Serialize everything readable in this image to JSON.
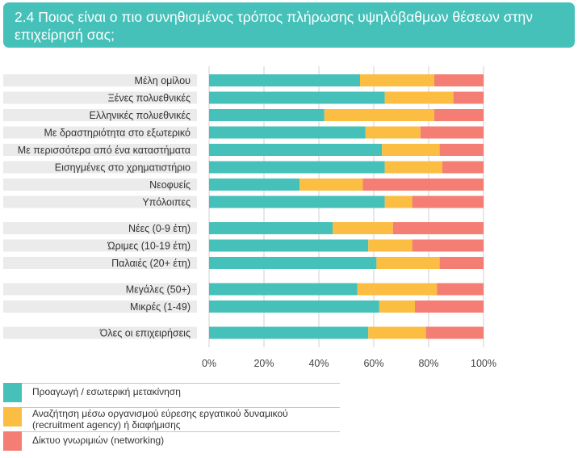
{
  "title": "2.4 Ποιος είναι ο πιο συνηθισμένος τρόπος πλήρωσης υψηλόβαθμων θέσεων στην επιχείρησή σας;",
  "chart_data": {
    "type": "bar",
    "orientation": "horizontal",
    "stacked": true,
    "percent": true,
    "categories": [
      "Μέλη ομίλου",
      "Ξένες πολυεθνικές",
      "Ελληνικές πολυεθνικές",
      "Με δραστηριότητα στο εξωτερικό",
      "Με περισσότερα από ένα καταστήματα",
      "Εισηγμένες στο χρηματιστήριο",
      "Νεοφυείς",
      "Υπόλοιπες",
      "Νέες (0-9 έτη)",
      "Ώριμες (10-19 έτη)",
      "Παλαιές (20+ έτη)",
      "Μεγάλες (50+)",
      "Μικρές (1-49)",
      "Όλες οι επιχειρήσεις"
    ],
    "groups": [
      8,
      3,
      2,
      1
    ],
    "series": [
      {
        "name": "Προαγωγή / εσωτερική μετακίνηση",
        "color": "#45c1b9",
        "values": [
          55,
          64,
          42,
          57,
          63,
          64,
          33,
          64,
          45,
          58,
          61,
          54,
          62,
          58
        ]
      },
      {
        "name": "Αναζήτηση μέσω οργανισμού εύρεσης εργατικού δυναμικού (recruitment agency) ή διαφήμισης",
        "color": "#fbbe42",
        "values": [
          27,
          25,
          40,
          20,
          21,
          21,
          23,
          10,
          22,
          16,
          23,
          29,
          13,
          21
        ]
      },
      {
        "name": "Δίκτυο γνωριμιών (networking)",
        "color": "#f47e74",
        "values": [
          18,
          11,
          18,
          23,
          16,
          15,
          44,
          26,
          33,
          26,
          16,
          17,
          25,
          21
        ]
      }
    ],
    "xlim": [
      0,
      100
    ],
    "xticks": [
      "0%",
      "20%",
      "40%",
      "60%",
      "80%",
      "100%"
    ],
    "grid": true,
    "legend_position": "bottom-left"
  }
}
